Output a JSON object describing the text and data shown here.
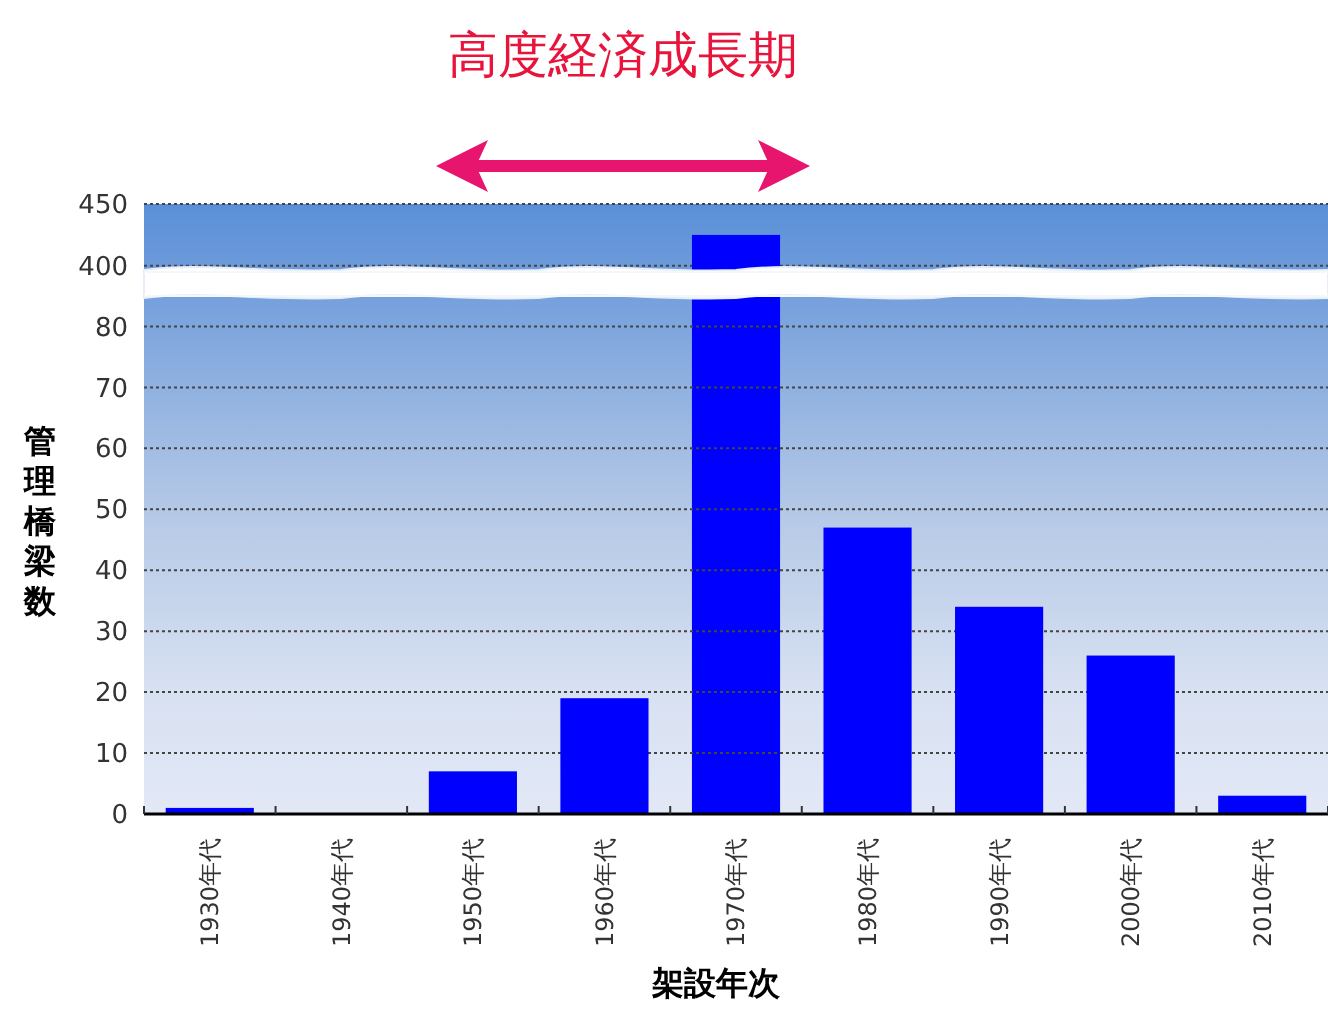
{
  "chart_data": [
    {
      "type": "bar",
      "title": "高度経済成長期",
      "categories": [
        null,
        null,
        null,
        null,
        null,
        null,
        null,
        null,
        null
      ],
      "values": [
        null,
        null,
        null,
        null,
        425,
        null,
        null,
        null,
        null
      ],
      "color": "#0000ff",
      "ylim": [
        395,
        450
      ],
      "yticks": [
        400,
        450
      ],
      "grid": "y",
      "tick_labels": "y"
    },
    {
      "type": "bar",
      "xlabel": "架設年次",
      "ylabel": "管理橋梁数",
      "categories": [
        "1930年代",
        "1940年代",
        "1950年代",
        "1960年代",
        "1970年代",
        "1980年代",
        "1990年代",
        "2000年代",
        "2010年代"
      ],
      "values": [
        1,
        0,
        7,
        19,
        null,
        47,
        34,
        26,
        3
      ],
      "color": "#0000ff",
      "ylim": [
        0,
        85
      ],
      "yticks": [
        0,
        10,
        20,
        30,
        40,
        50,
        60,
        70,
        80
      ],
      "grid": "y"
    }
  ]
}
